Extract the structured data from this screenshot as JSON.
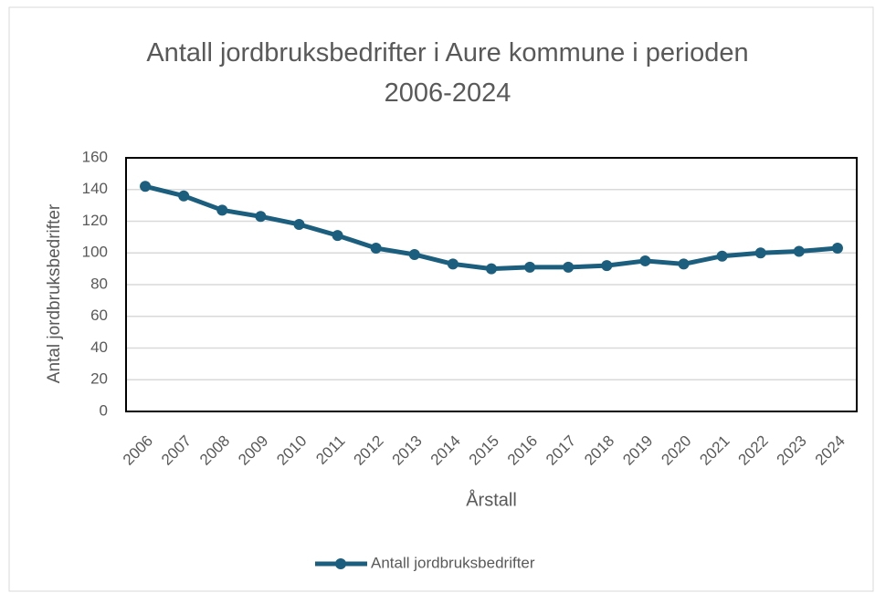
{
  "chart_data": {
    "type": "line",
    "title": "Antall jordbruksbedrifter i Aure kommune i perioden 2006-2024",
    "x_label": "Årstall",
    "y_label": "Antal jordbruksbedrifter",
    "categories": [
      "2006",
      "2007",
      "2008",
      "2009",
      "2010",
      "2011",
      "2012",
      "2013",
      "2014",
      "2015",
      "2016",
      "2017",
      "2018",
      "2019",
      "2020",
      "2021",
      "2022",
      "2023",
      "2024"
    ],
    "series": [
      {
        "name": "Antall jordbruksbedrifter",
        "color": "#1b5e7d",
        "values": [
          142,
          136,
          127,
          123,
          118,
          111,
          103,
          99,
          93,
          90,
          91,
          91,
          92,
          95,
          93,
          98,
          100,
          101,
          103
        ]
      }
    ],
    "ylim": [
      0,
      160
    ],
    "yticks": [
      0,
      20,
      40,
      60,
      80,
      100,
      120,
      140,
      160
    ],
    "grid": true,
    "legend": "bottom"
  }
}
